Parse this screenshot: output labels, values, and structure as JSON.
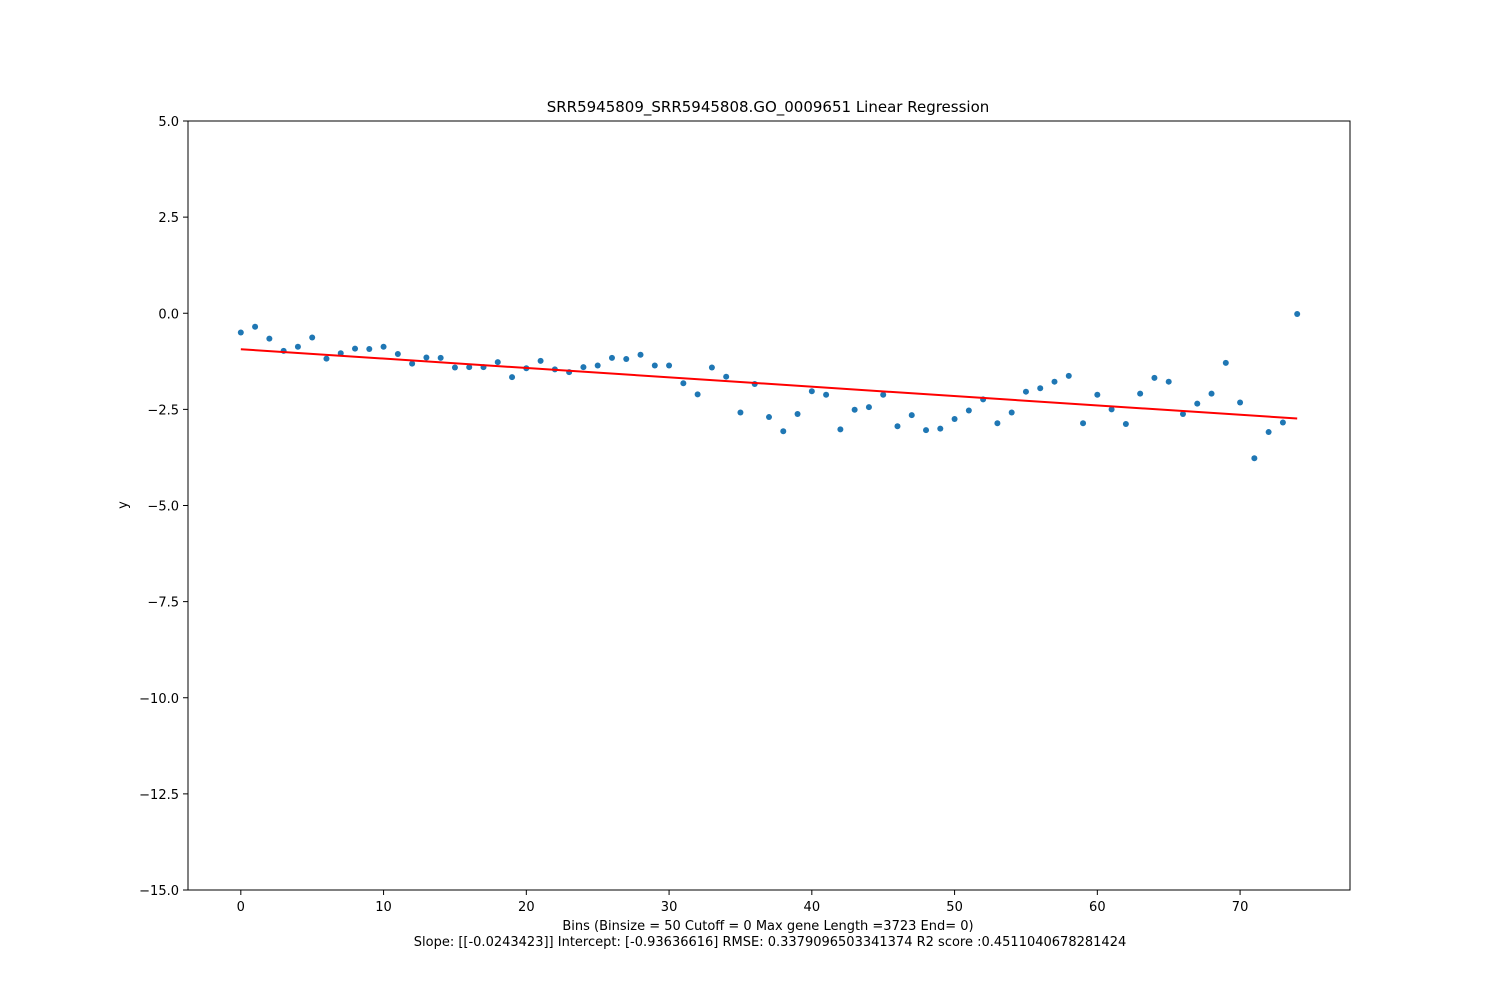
{
  "chart_data": {
    "type": "scatter",
    "title": "SRR5945809_SRR5945808.GO_0009651 Linear Regression",
    "xlabel": "Bins  (Binsize = 50 Cutoff = 0 Max gene Length =3723 End= 0)",
    "xlabel2": "Slope: [[-0.0243423]] Intercept: [-0.93636616] RMSE: 0.3379096503341374 R2 score :0.4511040678281424",
    "ylabel": "y",
    "xlim": [
      -3.7,
      77.7
    ],
    "ylim": [
      -15.0,
      5.0
    ],
    "xticks": [
      0,
      10,
      20,
      30,
      40,
      50,
      60,
      70
    ],
    "xtick_labels": [
      "0",
      "10",
      "20",
      "30",
      "40",
      "50",
      "60",
      "70"
    ],
    "yticks": [
      5.0,
      2.5,
      0.0,
      -2.5,
      -5.0,
      -7.5,
      -10.0,
      -12.5,
      -15.0
    ],
    "ytick_labels": [
      "5.0",
      "2.5",
      "0.0",
      "−2.5",
      "−5.0",
      "−7.5",
      "−10.0",
      "−12.5",
      "−15.0"
    ],
    "grid": false,
    "legend": "none",
    "series": [
      {
        "kind": "scatter",
        "color": "#1f77b4",
        "x": [
          0,
          1,
          2,
          3,
          4,
          5,
          6,
          7,
          8,
          9,
          10,
          11,
          12,
          13,
          14,
          15,
          16,
          17,
          18,
          19,
          20,
          21,
          22,
          23,
          24,
          25,
          26,
          27,
          28,
          29,
          30,
          31,
          32,
          33,
          34,
          35,
          36,
          37,
          38,
          39,
          40,
          41,
          42,
          43,
          44,
          45,
          46,
          47,
          48,
          49,
          50,
          51,
          52,
          53,
          54,
          55,
          56,
          57,
          58,
          59,
          60,
          61,
          62,
          63,
          64,
          65,
          66,
          67,
          68,
          69,
          70,
          71,
          72,
          73,
          74
        ],
        "y": [
          -0.5,
          -0.35,
          -0.66,
          -0.98,
          -0.87,
          -0.63,
          -1.18,
          -1.04,
          -0.92,
          -0.93,
          -0.87,
          -1.06,
          -1.31,
          -1.15,
          -1.16,
          -1.41,
          -1.4,
          -1.4,
          -1.27,
          -1.66,
          -1.43,
          -1.24,
          -1.46,
          -1.53,
          -1.4,
          -1.36,
          -1.16,
          -1.19,
          -1.08,
          -1.36,
          -1.36,
          -1.82,
          -2.11,
          -1.41,
          -1.65,
          -2.58,
          -1.84,
          -2.7,
          -3.07,
          -2.62,
          -2.03,
          -2.12,
          -3.02,
          -2.51,
          -2.44,
          -2.12,
          -2.94,
          -2.65,
          -3.04,
          -3.0,
          -2.75,
          -2.53,
          -2.24,
          -2.86,
          -2.58,
          -2.04,
          -1.95,
          -1.78,
          -1.63,
          -2.86,
          -2.12,
          -2.5,
          -2.88,
          -2.09,
          -1.68,
          -1.78,
          -2.62,
          -2.35,
          -2.09,
          -1.29,
          -2.32,
          -3.77,
          -3.09,
          -2.84,
          -0.02
        ]
      },
      {
        "kind": "line",
        "color": "#ff0000",
        "x": [
          0,
          74
        ],
        "y": [
          -0.936,
          -2.738
        ]
      }
    ]
  }
}
